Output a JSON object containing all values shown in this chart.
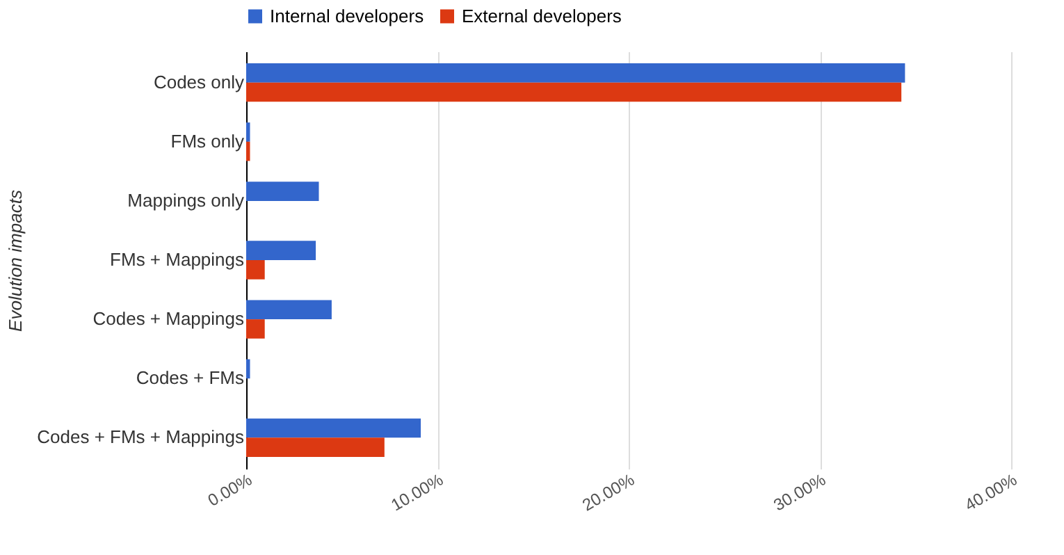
{
  "chart_data": {
    "type": "bar",
    "orientation": "horizontal",
    "ylabel": "Evolution impacts",
    "categories": [
      "Codes only",
      "FMs only",
      "Mappings only",
      "FMs + Mappings",
      "Codes + Mappings",
      "Codes + FMs",
      "Codes + FMs + Mappings"
    ],
    "series": [
      {
        "name": "Internal developers",
        "color": "#3366cc",
        "values": [
          34.45,
          0.2,
          3.8,
          3.64,
          4.47,
          0.2,
          9.13
        ]
      },
      {
        "name": "External developers",
        "color": "#dc3912",
        "values": [
          34.26,
          0.2,
          0,
          0.97,
          0.97,
          0,
          7.23
        ]
      }
    ],
    "xlim": [
      0,
      40
    ],
    "xticks": [
      {
        "value": 0,
        "label": "0.00%"
      },
      {
        "value": 10,
        "label": "10.00%"
      },
      {
        "value": 20,
        "label": "20.00%"
      },
      {
        "value": 30,
        "label": "30.00%"
      },
      {
        "value": 40,
        "label": "40.00%"
      }
    ],
    "grid": "x",
    "legend": "top"
  }
}
